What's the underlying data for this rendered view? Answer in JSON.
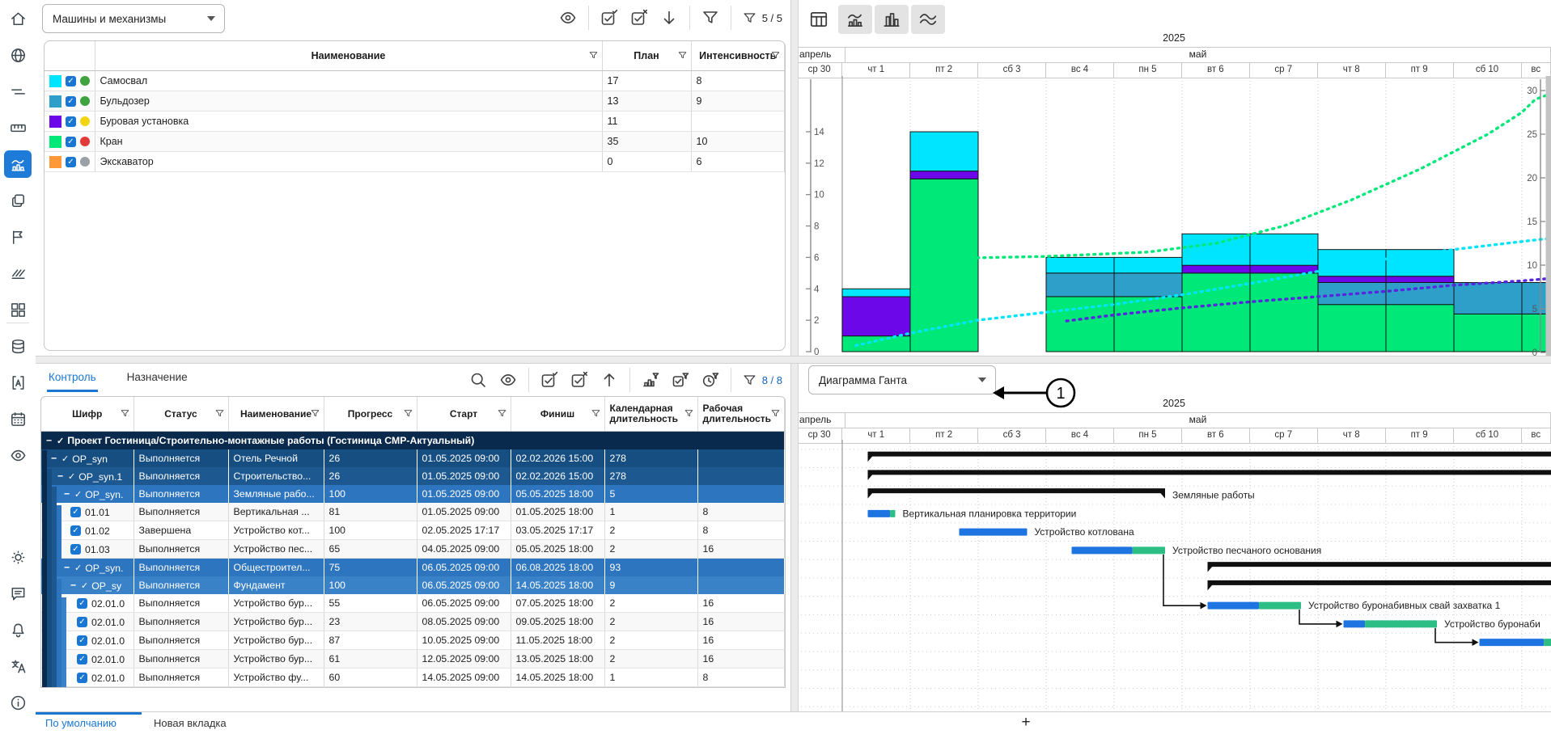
{
  "sidebar": {
    "icons": [
      "home",
      "globe",
      "levels",
      "ruler",
      "histogram",
      "copies",
      "flag",
      "hatch",
      "grid",
      "database",
      "text-style",
      "calendar",
      "eye",
      "brightness",
      "comments",
      "notifications",
      "translate",
      "info"
    ],
    "active_icon": "histogram"
  },
  "top_left": {
    "dropdown_value": "Машины и механизмы",
    "filter_count": "5 / 5",
    "columns": [
      "Наименование",
      "План",
      "Интенсивность"
    ],
    "resources": [
      {
        "name": "Самосвал",
        "color": "#00E5FF",
        "status_color": "#3FA33F",
        "plan": "17",
        "intensity": "8"
      },
      {
        "name": "Бульдозер",
        "color": "#2E9FC9",
        "status_color": "#3FA33F",
        "plan": "13",
        "intensity": "9"
      },
      {
        "name": "Буровая установка",
        "color": "#6B07E8",
        "status_color": "#F2D411",
        "plan": "11",
        "intensity": ""
      },
      {
        "name": "Кран",
        "color": "#00E878",
        "status_color": "#E23A3A",
        "plan": "35",
        "intensity": "10"
      },
      {
        "name": "Экскаватор",
        "color": "#FF9838",
        "status_color": "#9AA0A6",
        "plan": "0",
        "intensity": "6"
      }
    ]
  },
  "top_right": {
    "view_buttons": [
      "table-view",
      "histogram-view",
      "columns-view",
      "lines-view"
    ],
    "selected_views": [
      "histogram-view",
      "columns-view",
      "lines-view"
    ]
  },
  "timeline": {
    "year": "2025",
    "months": [
      "апрель",
      "май"
    ],
    "days": [
      "ср 30",
      "чт 1",
      "пт 2",
      "сб 3",
      "вс 4",
      "пн 5",
      "вт 6",
      "ср 7",
      "чт 8",
      "пт 9",
      "сб 10",
      "вс"
    ]
  },
  "bottom_left": {
    "tabs": [
      "Контроль",
      "Назначение"
    ],
    "active_tab": "Контроль",
    "filter_count": "8 / 8",
    "columns": [
      "Шифр",
      "Статус",
      "Наименование",
      "Прогресс",
      "Старт",
      "Финиш",
      "Календарная длительность",
      "Рабочая длительность"
    ],
    "project_row": {
      "name": "Проект Гостиница/Строительно-монтажные работы (Гостиница СМР-Актуальный)"
    },
    "rows": [
      {
        "kind": "summary",
        "level": 1,
        "shade": "#174E82",
        "code": "OP_syn",
        "status": "Выполняется",
        "name": "Отель Речной",
        "progress": "26",
        "start": "01.05.2025 09:00",
        "finish": "02.02.2026 15:00",
        "cal_dur": "278",
        "work_dur": ""
      },
      {
        "kind": "summary",
        "level": 2,
        "shade": "#1D5890",
        "code": "OP_syn.1",
        "status": "Выполняется",
        "name": "Строительство...",
        "progress": "26",
        "start": "01.05.2025 09:00",
        "finish": "02.02.2026 15:00",
        "cal_dur": "278",
        "work_dur": ""
      },
      {
        "kind": "summary",
        "level": 3,
        "shade": "#2E75BF",
        "code": "OP_syn.",
        "status": "Выполняется",
        "name": "Земляные рабо...",
        "progress": "100",
        "start": "01.05.2025 09:00",
        "finish": "05.05.2025 18:00",
        "cal_dur": "5",
        "work_dur": ""
      },
      {
        "kind": "task",
        "level": 4,
        "code": "01.01",
        "status": "Выполняется",
        "name": "Вертикальная ...",
        "progress": "81",
        "start": "01.05.2025 09:00",
        "finish": "01.05.2025 18:00",
        "cal_dur": "1",
        "work_dur": "8"
      },
      {
        "kind": "task",
        "level": 4,
        "code": "01.02",
        "status": "Завершена",
        "name": "Устройство кот...",
        "progress": "100",
        "start": "02.05.2025 17:17",
        "finish": "03.05.2025 17:17",
        "cal_dur": "2",
        "work_dur": "8"
      },
      {
        "kind": "task",
        "level": 4,
        "code": "01.03",
        "status": "Выполняется",
        "name": "Устройство пес...",
        "progress": "65",
        "start": "04.05.2025 09:00",
        "finish": "05.05.2025 18:00",
        "cal_dur": "2",
        "work_dur": "16"
      },
      {
        "kind": "summary",
        "level": 3,
        "shade": "#2E75BF",
        "code": "OP_syn.",
        "status": "Выполняется",
        "name": "Общестроител...",
        "progress": "75",
        "start": "06.05.2025 09:00",
        "finish": "06.08.2025 18:00",
        "cal_dur": "93",
        "work_dur": ""
      },
      {
        "kind": "summary",
        "level": 4,
        "shade": "#3A82C8",
        "code": "OP_sy",
        "status": "Выполняется",
        "name": "Фундамент",
        "progress": "100",
        "start": "06.05.2025 09:00",
        "finish": "14.05.2025 18:00",
        "cal_dur": "9",
        "work_dur": ""
      },
      {
        "kind": "task",
        "level": 5,
        "code": "02.01.0",
        "status": "Выполняется",
        "name": "Устройство бур...",
        "progress": "55",
        "start": "06.05.2025 09:00",
        "finish": "07.05.2025 18:00",
        "cal_dur": "2",
        "work_dur": "16"
      },
      {
        "kind": "task",
        "level": 5,
        "code": "02.01.0",
        "status": "Выполняется",
        "name": "Устройство бур...",
        "progress": "23",
        "start": "08.05.2025 09:00",
        "finish": "09.05.2025 18:00",
        "cal_dur": "2",
        "work_dur": "16"
      },
      {
        "kind": "task",
        "level": 5,
        "code": "02.01.0",
        "status": "Выполняется",
        "name": "Устройство бур...",
        "progress": "87",
        "start": "10.05.2025 09:00",
        "finish": "11.05.2025 18:00",
        "cal_dur": "2",
        "work_dur": "16"
      },
      {
        "kind": "task",
        "level": 5,
        "code": "02.01.0",
        "status": "Выполняется",
        "name": "Устройство бур...",
        "progress": "61",
        "start": "12.05.2025 09:00",
        "finish": "13.05.2025 18:00",
        "cal_dur": "2",
        "work_dur": "16"
      },
      {
        "kind": "task",
        "level": 5,
        "code": "02.01.0",
        "status": "Выполняется",
        "name": "Устройство фу...",
        "progress": "60",
        "start": "14.05.2025 09:00",
        "finish": "14.05.2025 18:00",
        "cal_dur": "1",
        "work_dur": "8"
      }
    ]
  },
  "bottom_right": {
    "dropdown_value": "Диаграмма Ганта",
    "annotation_label": "1"
  },
  "footer": {
    "tabs": [
      "По умолчанию",
      "Новая вкладка"
    ],
    "active_tab": "По умолчанию",
    "add_button": "+"
  },
  "chart_data": [
    {
      "type": "bar",
      "subtype": "stacked-resource-histogram",
      "title": "",
      "left_axis": {
        "min": 0,
        "max": 14,
        "step": 2
      },
      "right_axis": {
        "min": 0,
        "max": 30,
        "step": 5
      },
      "grid": "vertical-dotted-per-day",
      "stacks": [
        {
          "day": "чт 1",
          "segments": [
            {
              "color": "#00E878",
              "value": 1
            },
            {
              "color": "#6B07E8",
              "value": 2.5
            },
            {
              "color": "#00E5FF",
              "value": 0.5
            }
          ]
        },
        {
          "day": "пт 2",
          "segments": [
            {
              "color": "#00E878",
              "value": 11
            },
            {
              "color": "#6B07E8",
              "value": 0.5
            },
            {
              "color": "#00E5FF",
              "value": 2.5
            }
          ]
        },
        {
          "day": "вс 4",
          "segments": [
            {
              "color": "#00E878",
              "value": 3.5
            },
            {
              "color": "#2E9FC9",
              "value": 1.5
            },
            {
              "color": "#00E5FF",
              "value": 1
            }
          ]
        },
        {
          "day": "пн 5",
          "segments": [
            {
              "color": "#00E878",
              "value": 3.5
            },
            {
              "color": "#2E9FC9",
              "value": 1.5
            },
            {
              "color": "#00E5FF",
              "value": 1
            }
          ]
        },
        {
          "day": "вт 6",
          "segments": [
            {
              "color": "#00E878",
              "value": 5
            },
            {
              "color": "#6B07E8",
              "value": 0.5
            },
            {
              "color": "#00E5FF",
              "value": 2
            }
          ]
        },
        {
          "day": "ср 7",
          "segments": [
            {
              "color": "#00E878",
              "value": 5
            },
            {
              "color": "#6B07E8",
              "value": 0.5
            },
            {
              "color": "#00E5FF",
              "value": 2
            }
          ]
        },
        {
          "day": "чт 8",
          "segments": [
            {
              "color": "#00E878",
              "value": 3
            },
            {
              "color": "#2E9FC9",
              "value": 1.4
            },
            {
              "color": "#6B07E8",
              "value": 0.4
            },
            {
              "color": "#00E5FF",
              "value": 1.7
            }
          ]
        },
        {
          "day": "пт 9",
          "segments": [
            {
              "color": "#00E878",
              "value": 3
            },
            {
              "color": "#2E9FC9",
              "value": 1.4
            },
            {
              "color": "#6B07E8",
              "value": 0.4
            },
            {
              "color": "#00E5FF",
              "value": 1.7
            }
          ]
        },
        {
          "day": "сб 10",
          "segments": [
            {
              "color": "#00E878",
              "value": 2.4
            },
            {
              "color": "#2E9FC9",
              "value": 2
            }
          ]
        },
        {
          "day": "вс",
          "segments": [
            {
              "color": "#00E878",
              "value": 2.4
            },
            {
              "color": "#2E9FC9",
              "value": 2
            }
          ]
        }
      ],
      "curves": [
        {
          "color": "#00E878",
          "axis": "right",
          "points": [
            [
              1.7,
              10.8
            ],
            [
              3,
              11
            ],
            [
              4.5,
              11.5
            ],
            [
              5.5,
              12.5
            ],
            [
              6.5,
              14.5
            ],
            [
              7.5,
              17.5
            ],
            [
              8.5,
              21
            ],
            [
              9.5,
              25
            ],
            [
              10,
              27.5
            ],
            [
              10.2,
              29
            ],
            [
              10.45,
              29.7
            ]
          ]
        },
        {
          "color": "#00E5FF",
          "axis": "right",
          "points": [
            [
              0.2,
              0.8
            ],
            [
              1,
              2.2
            ],
            [
              2,
              3.7
            ],
            [
              3,
              4.6
            ],
            [
              4,
              5.5
            ],
            [
              5,
              6.6
            ],
            [
              6,
              7.9
            ],
            [
              7,
              9.3
            ],
            [
              8,
              10.7
            ],
            [
              9,
              11.8
            ],
            [
              10,
              12.7
            ],
            [
              10.45,
              13.1
            ]
          ]
        },
        {
          "color": "#5526DD",
          "axis": "right",
          "points": [
            [
              3.3,
              3.6
            ],
            [
              4,
              4.3
            ],
            [
              5,
              5.1
            ],
            [
              6,
              5.8
            ],
            [
              7,
              6.4
            ],
            [
              8,
              7
            ],
            [
              9,
              7.7
            ],
            [
              10,
              8.2
            ],
            [
              10.45,
              8.5
            ]
          ]
        }
      ]
    },
    {
      "type": "gantt",
      "bars": [
        {
          "row": 1,
          "kind": "summary",
          "start": 0.375,
          "end": 10.55,
          "open_end": true
        },
        {
          "row": 2,
          "kind": "summary",
          "start": 0.375,
          "end": 10.55,
          "open_end": true
        },
        {
          "row": 3,
          "kind": "summary",
          "start": 0.375,
          "end": 4.75,
          "label": "Земляные работы"
        },
        {
          "row": 4,
          "kind": "task",
          "start": 0.375,
          "end": 0.78,
          "progress": 81,
          "label": "Вертикальная планировка территории"
        },
        {
          "row": 5,
          "kind": "task",
          "start": 1.72,
          "end": 2.72,
          "progress": 100,
          "label": "Устройство котлована"
        },
        {
          "row": 6,
          "kind": "task",
          "start": 3.375,
          "end": 4.75,
          "progress": 65,
          "label": "Устройство песчаного основания"
        },
        {
          "row": 7,
          "kind": "summary",
          "start": 5.375,
          "end": 10.55,
          "open_end": true
        },
        {
          "row": 8,
          "kind": "summary",
          "start": 5.375,
          "end": 10.55,
          "open_end": true
        },
        {
          "row": 9,
          "kind": "task",
          "start": 5.375,
          "end": 6.75,
          "progress": 55,
          "label": "Устройство буронабивных свай захватка 1"
        },
        {
          "row": 10,
          "kind": "task",
          "start": 7.375,
          "end": 8.75,
          "progress": 23,
          "label": "Устройство буронаби"
        },
        {
          "row": 11,
          "kind": "task",
          "start": 9.375,
          "end": 10.75,
          "progress": 87
        }
      ],
      "links": [
        {
          "from": 6,
          "to": 9
        },
        {
          "from": 9,
          "to": 10
        },
        {
          "from": 10,
          "to": 11
        }
      ],
      "colors": {
        "task_done": "#1E74E0",
        "task_rest": "#2DBE86",
        "summary": "#101010"
      }
    }
  ]
}
